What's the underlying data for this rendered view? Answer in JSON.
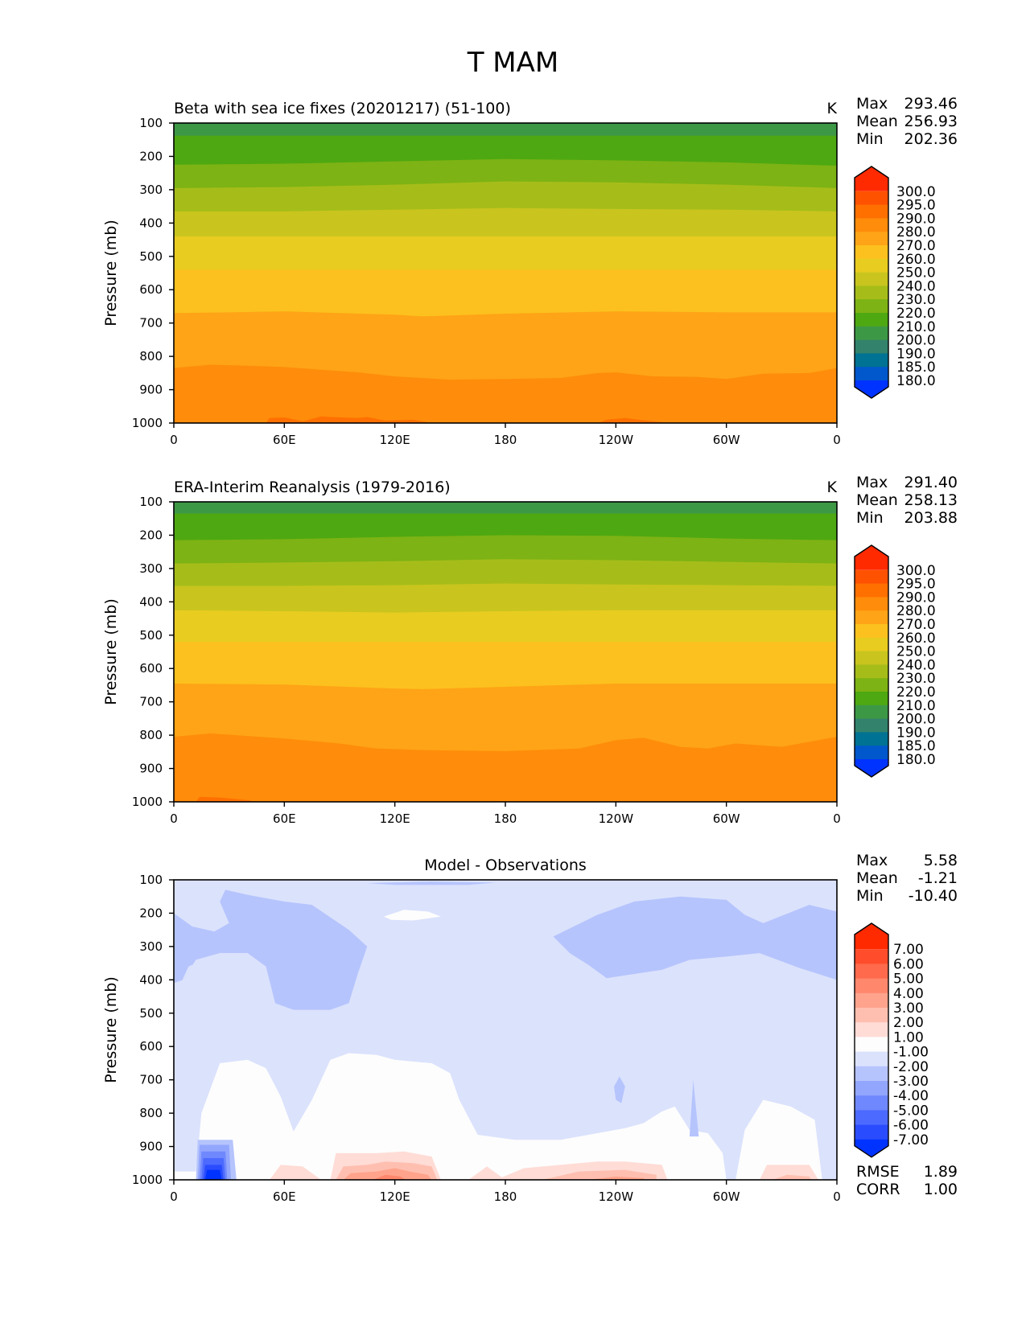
{
  "chart_data": {
    "title": "T MAM",
    "type": "heatmap",
    "xlabel_ticks": [
      "0",
      "60E",
      "120E",
      "180",
      "120W",
      "60W",
      "0"
    ],
    "x_tick_values": [
      0,
      60,
      120,
      180,
      240,
      300,
      360
    ],
    "xlim": [
      0,
      360
    ],
    "ylabel": "Pressure (mb)",
    "y_ticks": [
      100,
      200,
      300,
      400,
      500,
      600,
      700,
      800,
      900,
      1000
    ],
    "ylim": [
      1000,
      100
    ],
    "panels": [
      {
        "title": "Beta with sea ice fixes (20201217) (51-100)",
        "units": "K",
        "stats": [
          {
            "label": "Max",
            "value": "293.46"
          },
          {
            "label": "Mean",
            "value": "256.93"
          },
          {
            "label": "Min",
            "value": "202.36"
          }
        ],
        "levels": [
          "300.0",
          "295.0",
          "290.0",
          "280.0",
          "270.0",
          "260.0",
          "250.0",
          "240.0",
          "230.0",
          "220.0",
          "210.0",
          "200.0",
          "190.0",
          "185.0",
          "180.0"
        ],
        "colors": [
          "#ff2a00",
          "#ff5200",
          "#ff7000",
          "#ff8c0a",
          "#ffa416",
          "#fcc11e",
          "#e8cc20",
          "#c9c51e",
          "#a6bd19",
          "#7db314",
          "#4ea811",
          "#3d9846",
          "#33826c",
          "#007293",
          "#0058cc",
          "#0033ff"
        ],
        "bands": [
          {
            "color": "#3d9846",
            "p": [
              [
                0,
                138
              ],
              [
                360,
                138
              ]
            ]
          },
          {
            "color": "#4ea811",
            "p": [
              [
                0,
                225
              ],
              [
                60,
                222
              ],
              [
                120,
                215
              ],
              [
                180,
                208
              ],
              [
                240,
                212
              ],
              [
                300,
                218
              ],
              [
                360,
                228
              ]
            ]
          },
          {
            "color": "#7db314",
            "p": [
              [
                0,
                295
              ],
              [
                60,
                292
              ],
              [
                120,
                285
              ],
              [
                180,
                275
              ],
              [
                240,
                278
              ],
              [
                300,
                285
              ],
              [
                360,
                295
              ]
            ]
          },
          {
            "color": "#a6bd19",
            "p": [
              [
                0,
                365
              ],
              [
                60,
                365
              ],
              [
                120,
                360
              ],
              [
                180,
                355
              ],
              [
                240,
                358
              ],
              [
                300,
                360
              ],
              [
                360,
                365
              ]
            ]
          },
          {
            "color": "#c9c51e",
            "p": [
              [
                0,
                440
              ],
              [
                60,
                440
              ],
              [
                120,
                440
              ],
              [
                180,
                440
              ],
              [
                240,
                440
              ],
              [
                300,
                440
              ],
              [
                360,
                440
              ]
            ]
          },
          {
            "color": "#e8cc20",
            "p": [
              [
                0,
                540
              ],
              [
                60,
                540
              ],
              [
                120,
                540
              ],
              [
                180,
                540
              ],
              [
                240,
                540
              ],
              [
                300,
                540
              ],
              [
                360,
                540
              ]
            ]
          },
          {
            "color": "#fcc11e",
            "p": [
              [
                0,
                670
              ],
              [
                30,
                668
              ],
              [
                60,
                665
              ],
              [
                120,
                675
              ],
              [
                135,
                680
              ],
              [
                180,
                672
              ],
              [
                240,
                665
              ],
              [
                300,
                668
              ],
              [
                360,
                668
              ]
            ]
          },
          {
            "color": "#ffa416",
            "p": [
              [
                0,
                835
              ],
              [
                20,
                825
              ],
              [
                40,
                828
              ],
              [
                60,
                832
              ],
              [
                80,
                840
              ],
              [
                100,
                848
              ],
              [
                120,
                860
              ],
              [
                150,
                870
              ],
              [
                180,
                868
              ],
              [
                210,
                865
              ],
              [
                230,
                850
              ],
              [
                240,
                848
              ],
              [
                260,
                860
              ],
              [
                285,
                862
              ],
              [
                300,
                868
              ],
              [
                320,
                852
              ],
              [
                345,
                850
              ],
              [
                360,
                835
              ]
            ]
          },
          {
            "color": "#ff8c0a",
            "p": [
              [
                0,
                1000
              ],
              [
                50,
                1000
              ],
              [
                52,
                985
              ],
              [
                60,
                983
              ],
              [
                70,
                995
              ],
              [
                80,
                980
              ],
              [
                85,
                982
              ],
              [
                100,
                985
              ],
              [
                105,
                982
              ],
              [
                115,
                993
              ],
              [
                130,
                990
              ],
              [
                140,
                1000
              ],
              [
                230,
                1000
              ],
              [
                235,
                990
              ],
              [
                245,
                985
              ],
              [
                260,
                995
              ],
              [
                270,
                1000
              ],
              [
                360,
                1000
              ]
            ]
          }
        ]
      },
      {
        "title": "ERA-Interim Reanalysis (1979-2016)",
        "units": "K",
        "stats": [
          {
            "label": "Max",
            "value": "291.40"
          },
          {
            "label": "Mean",
            "value": "258.13"
          },
          {
            "label": "Min",
            "value": "203.88"
          }
        ],
        "levels": [
          "300.0",
          "295.0",
          "290.0",
          "280.0",
          "270.0",
          "260.0",
          "250.0",
          "240.0",
          "230.0",
          "220.0",
          "210.0",
          "200.0",
          "190.0",
          "185.0",
          "180.0"
        ],
        "colors": [
          "#ff2a00",
          "#ff5200",
          "#ff7000",
          "#ff8c0a",
          "#ffa416",
          "#fcc11e",
          "#e8cc20",
          "#c9c51e",
          "#a6bd19",
          "#7db314",
          "#4ea811",
          "#3d9846",
          "#33826c",
          "#007293",
          "#0058cc",
          "#0033ff"
        ],
        "bands": [
          {
            "color": "#3d9846",
            "p": [
              [
                0,
                135
              ],
              [
                360,
                135
              ]
            ]
          },
          {
            "color": "#4ea811",
            "p": [
              [
                0,
                215
              ],
              [
                60,
                212
              ],
              [
                120,
                205
              ],
              [
                180,
                200
              ],
              [
                240,
                202
              ],
              [
                300,
                210
              ],
              [
                360,
                215
              ]
            ]
          },
          {
            "color": "#7db314",
            "p": [
              [
                0,
                285
              ],
              [
                60,
                282
              ],
              [
                120,
                278
              ],
              [
                180,
                272
              ],
              [
                240,
                275
              ],
              [
                300,
                280
              ],
              [
                360,
                285
              ]
            ]
          },
          {
            "color": "#a6bd19",
            "p": [
              [
                0,
                352
              ],
              [
                60,
                352
              ],
              [
                120,
                350
              ],
              [
                180,
                345
              ],
              [
                240,
                348
              ],
              [
                300,
                350
              ],
              [
                360,
                352
              ]
            ]
          },
          {
            "color": "#c9c51e",
            "p": [
              [
                0,
                425
              ],
              [
                60,
                428
              ],
              [
                120,
                432
              ],
              [
                180,
                428
              ],
              [
                240,
                425
              ],
              [
                300,
                425
              ],
              [
                360,
                425
              ]
            ]
          },
          {
            "color": "#e8cc20",
            "p": [
              [
                0,
                520
              ],
              [
                360,
                520
              ]
            ]
          },
          {
            "color": "#fcc11e",
            "p": [
              [
                0,
                645
              ],
              [
                60,
                648
              ],
              [
                120,
                660
              ],
              [
                135,
                662
              ],
              [
                180,
                655
              ],
              [
                240,
                645
              ],
              [
                300,
                645
              ],
              [
                360,
                645
              ]
            ]
          },
          {
            "color": "#ffa416",
            "p": [
              [
                0,
                805
              ],
              [
                20,
                795
              ],
              [
                60,
                810
              ],
              [
                90,
                825
              ],
              [
                110,
                840
              ],
              [
                135,
                845
              ],
              [
                180,
                848
              ],
              [
                220,
                840
              ],
              [
                240,
                815
              ],
              [
                255,
                808
              ],
              [
                275,
                835
              ],
              [
                290,
                840
              ],
              [
                305,
                825
              ],
              [
                330,
                835
              ],
              [
                360,
                805
              ]
            ]
          },
          {
            "color": "#ff8c0a",
            "p": [
              [
                0,
                1000
              ],
              [
                12,
                1000
              ],
              [
                14,
                985
              ],
              [
                25,
                987
              ],
              [
                40,
                995
              ],
              [
                45,
                1000
              ],
              [
                360,
                1000
              ]
            ]
          }
        ]
      },
      {
        "title": "Model - Observations",
        "units": "",
        "stats": [
          {
            "label": "Max",
            "value": "5.58"
          },
          {
            "label": "Mean",
            "value": "-1.21"
          },
          {
            "label": "Min",
            "value": "-10.40"
          }
        ],
        "levels": [
          "7.00",
          "6.00",
          "5.00",
          "4.00",
          "3.00",
          "2.00",
          "1.00",
          "-1.00",
          "-2.00",
          "-3.00",
          "-4.00",
          "-5.00",
          "-6.00",
          "-7.00"
        ],
        "colors": [
          "#ff2a00",
          "#ff4c2b",
          "#ff6a4c",
          "#ff876c",
          "#ffa38c",
          "#ffbfb0",
          "#ffdcd6",
          "#fdfdfd",
          "#dbe2fc",
          "#b6c4fd",
          "#92a6fd",
          "#6f88fd",
          "#4c6aff",
          "#2a4cff",
          "#0033ff"
        ],
        "bottom_stats": [
          {
            "label": "RMSE",
            "value": "1.89"
          },
          {
            "label": "CORR",
            "value": "1.00"
          }
        ]
      }
    ]
  }
}
